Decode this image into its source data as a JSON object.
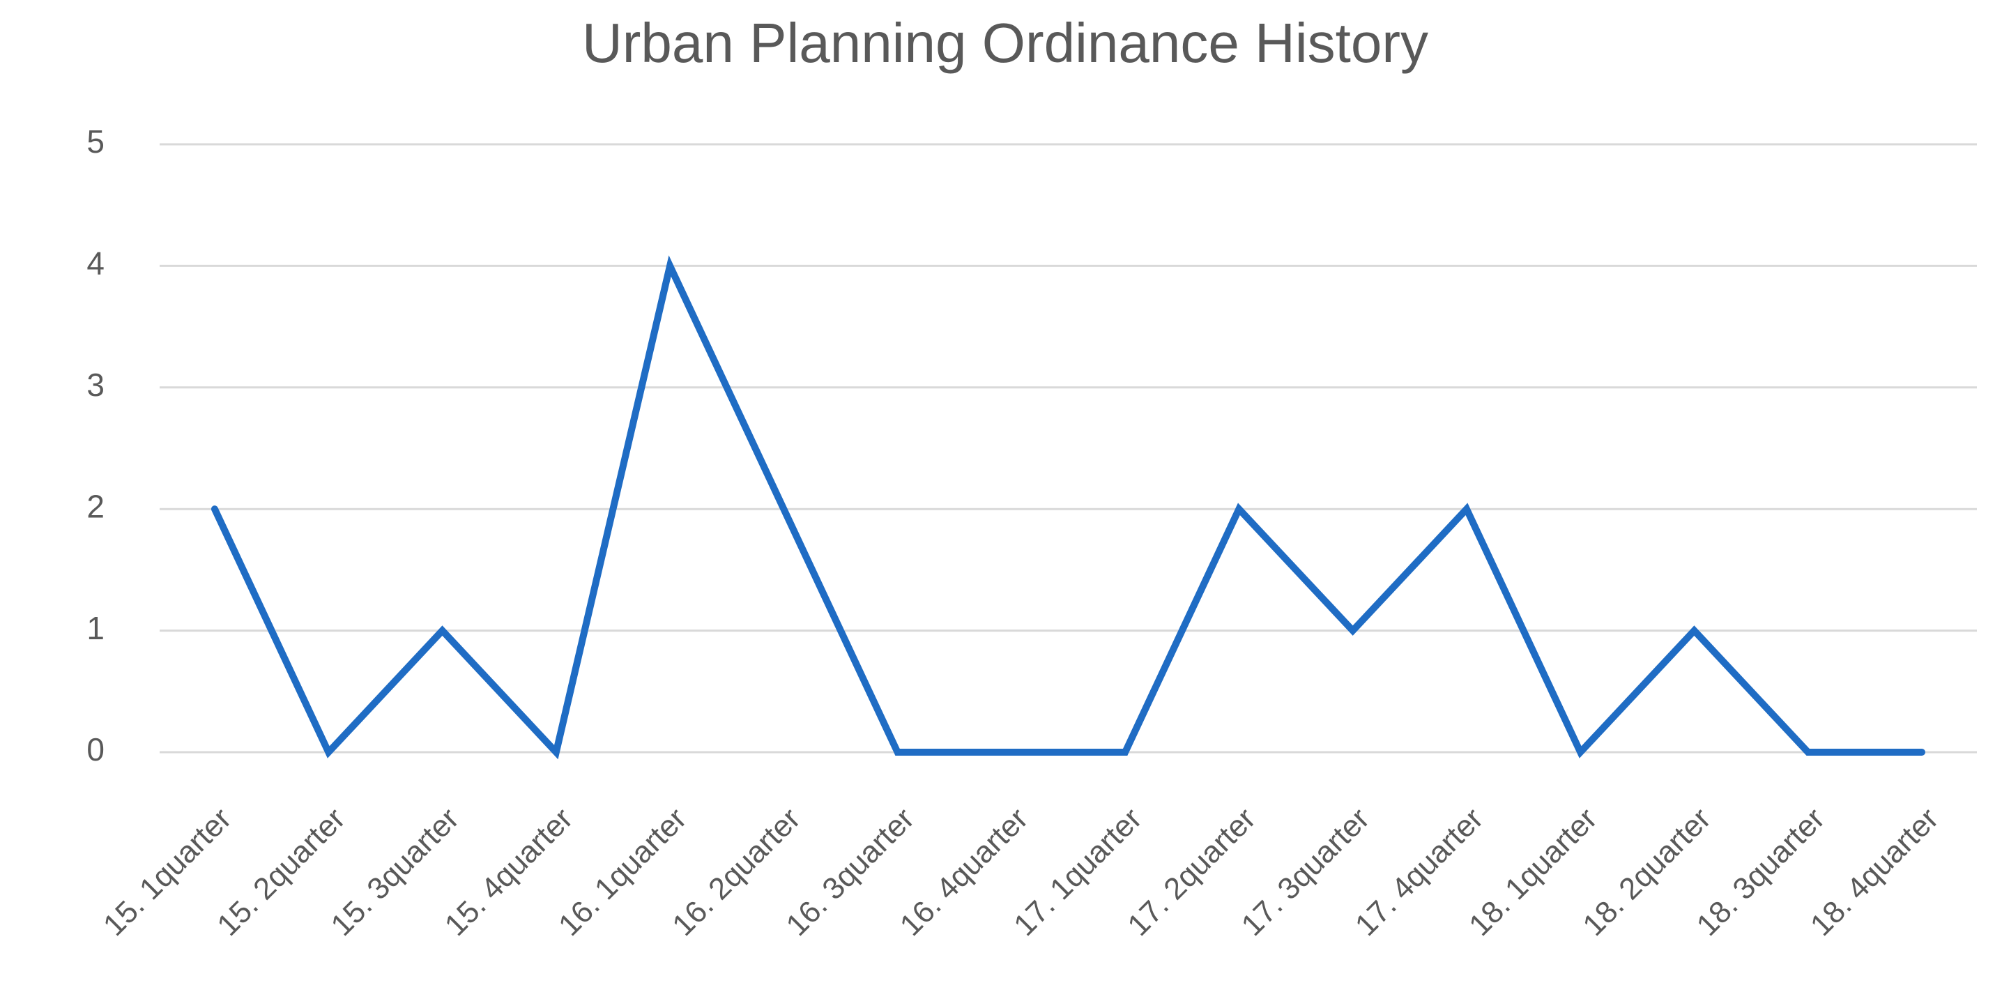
{
  "chart_data": {
    "type": "line",
    "title": "Urban Planning Ordinance History",
    "categories": [
      "15. 1quarter",
      "15. 2quarter",
      "15. 3quarter",
      "15. 4quarter",
      "16. 1quarter",
      "16. 2quarter",
      "16. 3quarter",
      "16. 4quarter",
      "17. 1quarter",
      "17. 2quarter",
      "17. 3quarter",
      "17. 4quarter",
      "18. 1quarter",
      "18. 2quarter",
      "18. 3quarter",
      "18. 4quarter"
    ],
    "values": [
      2,
      0,
      1,
      0,
      4,
      2,
      0,
      0,
      0,
      2,
      1,
      2,
      0,
      1,
      0,
      0
    ],
    "color": "#1f6cc4",
    "ylim": [
      0,
      5
    ],
    "yticks": [
      0,
      1,
      2,
      3,
      4,
      5
    ],
    "grid": true
  }
}
